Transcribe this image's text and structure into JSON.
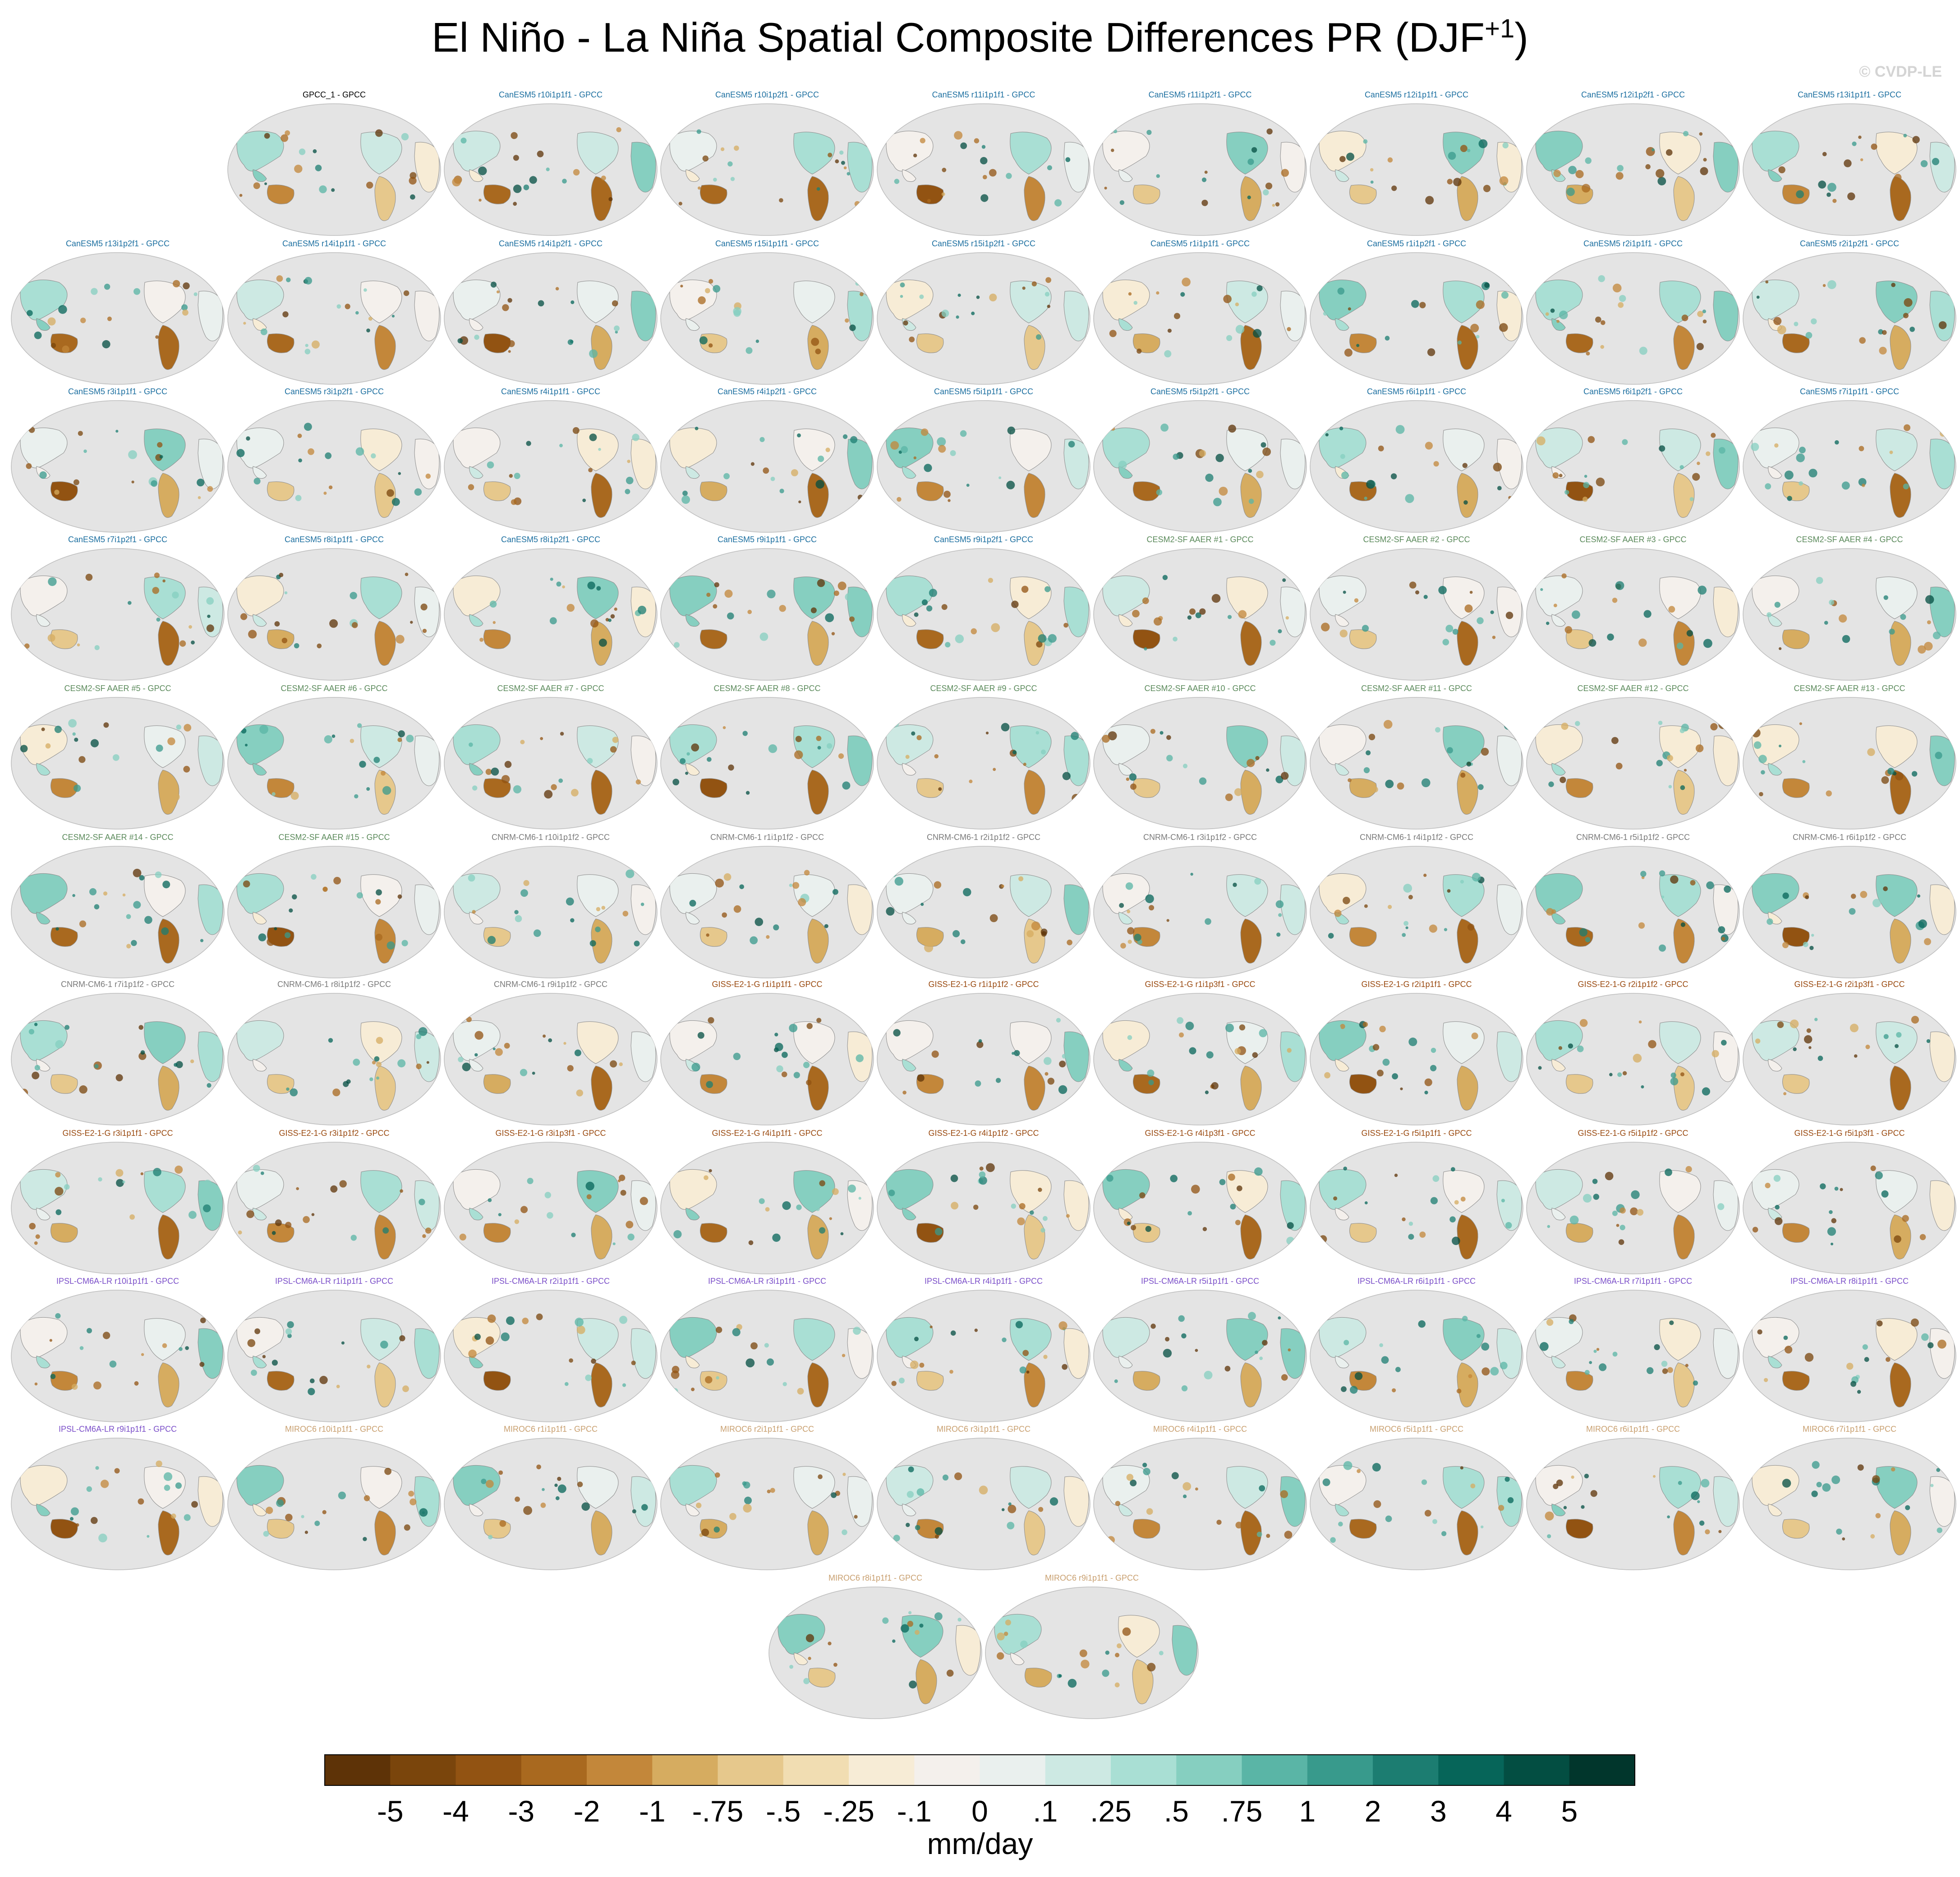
{
  "title_main": "El Niño - La Niña Spatial Composite Differences PR (DJF",
  "title_sup": "+1",
  "title_end": ")",
  "watermark": "© CVDP-LE",
  "chart_data": {
    "type": "heatmap",
    "title": "El Niño - La Niña Spatial Composite Differences PR (DJF+1)",
    "projection": "global map (Robinson), Pacific-centered",
    "panels": [
      {
        "label": "GPCC_1 - GPCC",
        "group": "obs"
      },
      {
        "label": "CanESM5 r10i1p1f1 - GPCC",
        "group": "CanESM5"
      },
      {
        "label": "CanESM5 r10i1p2f1 - GPCC",
        "group": "CanESM5"
      },
      {
        "label": "CanESM5 r11i1p1f1 - GPCC",
        "group": "CanESM5"
      },
      {
        "label": "CanESM5 r11i1p2f1 - GPCC",
        "group": "CanESM5"
      },
      {
        "label": "CanESM5 r12i1p1f1 - GPCC",
        "group": "CanESM5"
      },
      {
        "label": "CanESM5 r12i1p2f1 - GPCC",
        "group": "CanESM5"
      },
      {
        "label": "CanESM5 r13i1p1f1 - GPCC",
        "group": "CanESM5"
      },
      {
        "label": "CanESM5 r13i1p2f1 - GPCC",
        "group": "CanESM5"
      },
      {
        "label": "CanESM5 r14i1p1f1 - GPCC",
        "group": "CanESM5"
      },
      {
        "label": "CanESM5 r14i1p2f1 - GPCC",
        "group": "CanESM5"
      },
      {
        "label": "CanESM5 r15i1p1f1 - GPCC",
        "group": "CanESM5"
      },
      {
        "label": "CanESM5 r15i1p2f1 - GPCC",
        "group": "CanESM5"
      },
      {
        "label": "CanESM5 r1i1p1f1 - GPCC",
        "group": "CanESM5"
      },
      {
        "label": "CanESM5 r1i1p2f1 - GPCC",
        "group": "CanESM5"
      },
      {
        "label": "CanESM5 r2i1p1f1 - GPCC",
        "group": "CanESM5"
      },
      {
        "label": "CanESM5 r2i1p2f1 - GPCC",
        "group": "CanESM5"
      },
      {
        "label": "CanESM5 r3i1p1f1 - GPCC",
        "group": "CanESM5"
      },
      {
        "label": "CanESM5 r3i1p2f1 - GPCC",
        "group": "CanESM5"
      },
      {
        "label": "CanESM5 r4i1p1f1 - GPCC",
        "group": "CanESM5"
      },
      {
        "label": "CanESM5 r4i1p2f1 - GPCC",
        "group": "CanESM5"
      },
      {
        "label": "CanESM5 r5i1p1f1 - GPCC",
        "group": "CanESM5"
      },
      {
        "label": "CanESM5 r5i1p2f1 - GPCC",
        "group": "CanESM5"
      },
      {
        "label": "CanESM5 r6i1p1f1 - GPCC",
        "group": "CanESM5"
      },
      {
        "label": "CanESM5 r6i1p2f1 - GPCC",
        "group": "CanESM5"
      },
      {
        "label": "CanESM5 r7i1p1f1 - GPCC",
        "group": "CanESM5"
      },
      {
        "label": "CanESM5 r7i1p2f1 - GPCC",
        "group": "CanESM5"
      },
      {
        "label": "CanESM5 r8i1p1f1 - GPCC",
        "group": "CanESM5"
      },
      {
        "label": "CanESM5 r8i1p2f1 - GPCC",
        "group": "CanESM5"
      },
      {
        "label": "CanESM5 r9i1p1f1 - GPCC",
        "group": "CanESM5"
      },
      {
        "label": "CanESM5 r9i1p2f1 - GPCC",
        "group": "CanESM5"
      },
      {
        "label": "CESM2-SF AAER #1 - GPCC",
        "group": "CESM2"
      },
      {
        "label": "CESM2-SF AAER #2 - GPCC",
        "group": "CESM2"
      },
      {
        "label": "CESM2-SF AAER #3 - GPCC",
        "group": "CESM2"
      },
      {
        "label": "CESM2-SF AAER #4 - GPCC",
        "group": "CESM2"
      },
      {
        "label": "CESM2-SF AAER #5 - GPCC",
        "group": "CESM2"
      },
      {
        "label": "CESM2-SF AAER #6 - GPCC",
        "group": "CESM2"
      },
      {
        "label": "CESM2-SF AAER #7 - GPCC",
        "group": "CESM2"
      },
      {
        "label": "CESM2-SF AAER #8 - GPCC",
        "group": "CESM2"
      },
      {
        "label": "CESM2-SF AAER #9 - GPCC",
        "group": "CESM2"
      },
      {
        "label": "CESM2-SF AAER #10 - GPCC",
        "group": "CESM2"
      },
      {
        "label": "CESM2-SF AAER #11 - GPCC",
        "group": "CESM2"
      },
      {
        "label": "CESM2-SF AAER #12 - GPCC",
        "group": "CESM2"
      },
      {
        "label": "CESM2-SF AAER #13 - GPCC",
        "group": "CESM2"
      },
      {
        "label": "CESM2-SF AAER #14 - GPCC",
        "group": "CESM2"
      },
      {
        "label": "CESM2-SF AAER #15 - GPCC",
        "group": "CESM2"
      },
      {
        "label": "CNRM-CM6-1 r10i1p1f2 - GPCC",
        "group": "CNRM"
      },
      {
        "label": "CNRM-CM6-1 r1i1p1f2 - GPCC",
        "group": "CNRM"
      },
      {
        "label": "CNRM-CM6-1 r2i1p1f2 - GPCC",
        "group": "CNRM"
      },
      {
        "label": "CNRM-CM6-1 r3i1p1f2 - GPCC",
        "group": "CNRM"
      },
      {
        "label": "CNRM-CM6-1 r4i1p1f2 - GPCC",
        "group": "CNRM"
      },
      {
        "label": "CNRM-CM6-1 r5i1p1f2 - GPCC",
        "group": "CNRM"
      },
      {
        "label": "CNRM-CM6-1 r6i1p1f2 - GPCC",
        "group": "CNRM"
      },
      {
        "label": "CNRM-CM6-1 r7i1p1f2 - GPCC",
        "group": "CNRM"
      },
      {
        "label": "CNRM-CM6-1 r8i1p1f2 - GPCC",
        "group": "CNRM"
      },
      {
        "label": "CNRM-CM6-1 r9i1p1f2 - GPCC",
        "group": "CNRM"
      },
      {
        "label": "GISS-E2-1-G r1i1p1f1 - GPCC",
        "group": "GISS"
      },
      {
        "label": "GISS-E2-1-G r1i1p1f2 - GPCC",
        "group": "GISS"
      },
      {
        "label": "GISS-E2-1-G r1i1p3f1 - GPCC",
        "group": "GISS"
      },
      {
        "label": "GISS-E2-1-G r2i1p1f1 - GPCC",
        "group": "GISS"
      },
      {
        "label": "GISS-E2-1-G r2i1p1f2 - GPCC",
        "group": "GISS"
      },
      {
        "label": "GISS-E2-1-G r2i1p3f1 - GPCC",
        "group": "GISS"
      },
      {
        "label": "GISS-E2-1-G r3i1p1f1 - GPCC",
        "group": "GISS"
      },
      {
        "label": "GISS-E2-1-G r3i1p1f2 - GPCC",
        "group": "GISS"
      },
      {
        "label": "GISS-E2-1-G r3i1p3f1 - GPCC",
        "group": "GISS"
      },
      {
        "label": "GISS-E2-1-G r4i1p1f1 - GPCC",
        "group": "GISS"
      },
      {
        "label": "GISS-E2-1-G r4i1p1f2 - GPCC",
        "group": "GISS"
      },
      {
        "label": "GISS-E2-1-G r4i1p3f1 - GPCC",
        "group": "GISS"
      },
      {
        "label": "GISS-E2-1-G r5i1p1f1 - GPCC",
        "group": "GISS"
      },
      {
        "label": "GISS-E2-1-G r5i1p1f2 - GPCC",
        "group": "GISS"
      },
      {
        "label": "GISS-E2-1-G r5i1p3f1 - GPCC",
        "group": "GISS"
      },
      {
        "label": "IPSL-CM6A-LR r10i1p1f1 - GPCC",
        "group": "IPSL"
      },
      {
        "label": "IPSL-CM6A-LR r1i1p1f1 - GPCC",
        "group": "IPSL"
      },
      {
        "label": "IPSL-CM6A-LR r2i1p1f1 - GPCC",
        "group": "IPSL"
      },
      {
        "label": "IPSL-CM6A-LR r3i1p1f1 - GPCC",
        "group": "IPSL"
      },
      {
        "label": "IPSL-CM6A-LR r4i1p1f1 - GPCC",
        "group": "IPSL"
      },
      {
        "label": "IPSL-CM6A-LR r5i1p1f1 - GPCC",
        "group": "IPSL"
      },
      {
        "label": "IPSL-CM6A-LR r6i1p1f1 - GPCC",
        "group": "IPSL"
      },
      {
        "label": "IPSL-CM6A-LR r7i1p1f1 - GPCC",
        "group": "IPSL"
      },
      {
        "label": "IPSL-CM6A-LR r8i1p1f1 - GPCC",
        "group": "IPSL"
      },
      {
        "label": "IPSL-CM6A-LR r9i1p1f1 - GPCC",
        "group": "IPSL"
      },
      {
        "label": "MIROC6 r10i1p1f1 - GPCC",
        "group": "MIROC6"
      },
      {
        "label": "MIROC6 r1i1p1f1 - GPCC",
        "group": "MIROC6"
      },
      {
        "label": "MIROC6 r2i1p1f1 - GPCC",
        "group": "MIROC6"
      },
      {
        "label": "MIROC6 r3i1p1f1 - GPCC",
        "group": "MIROC6"
      },
      {
        "label": "MIROC6 r4i1p1f1 - GPCC",
        "group": "MIROC6"
      },
      {
        "label": "MIROC6 r5i1p1f1 - GPCC",
        "group": "MIROC6"
      },
      {
        "label": "MIROC6 r6i1p1f1 - GPCC",
        "group": "MIROC6"
      },
      {
        "label": "MIROC6 r7i1p1f1 - GPCC",
        "group": "MIROC6"
      },
      {
        "label": "MIROC6 r8i1p1f1 - GPCC",
        "group": "MIROC6"
      },
      {
        "label": "MIROC6 r9i1p1f1 - GPCC",
        "group": "MIROC6"
      }
    ],
    "group_colors": {
      "obs": "#000000",
      "CanESM5": "#1c6fa0",
      "CESM2": "#5b8a5b",
      "CNRM": "#7a7a7a",
      "GISS": "#9a4a10",
      "IPSL": "#7b4fc9",
      "MIROC6": "#c9a070"
    },
    "colorbar": {
      "unit_label": "mm/day",
      "tick_labels": [
        "-5",
        "-4",
        "-3",
        "-2",
        "-1",
        "-.75",
        "-.5",
        "-.25",
        "-.1",
        "0",
        ".1",
        ".25",
        ".5",
        ".75",
        "1",
        "2",
        "3",
        "4",
        "5"
      ],
      "colors": [
        "#5e3307",
        "#7a450c",
        "#925312",
        "#a9691f",
        "#c3873a",
        "#d6ac60",
        "#e6c88c",
        "#f1ddb2",
        "#f7ecd6",
        "#f4f0ec",
        "#eaf0ee",
        "#cde9e3",
        "#a9dfd4",
        "#86cfc0",
        "#5ab5a6",
        "#389a8c",
        "#1c7d71",
        "#066559",
        "#034e42",
        "#01362c"
      ]
    },
    "map_colors": {
      "ocean": "#e4e4e4",
      "coast": "#8c8c8c"
    }
  }
}
